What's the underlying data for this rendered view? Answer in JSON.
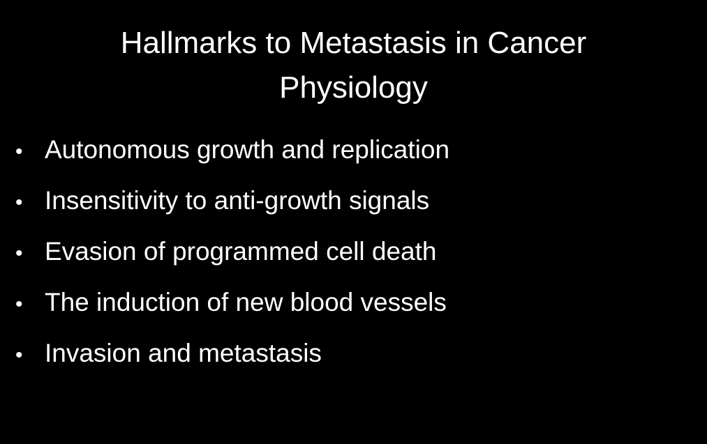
{
  "slide": {
    "title_line1": "Hallmarks to Metastasis in Cancer",
    "title_line2": "Physiology",
    "bullet_symbol": "•",
    "bullets": [
      "Autonomous growth and replication",
      "Insensitivity to anti-growth signals",
      "Evasion of programmed cell death",
      "The induction of new blood vessels",
      "Invasion and metastasis"
    ],
    "colors": {
      "background": "#000000",
      "text": "#ffffff"
    }
  }
}
